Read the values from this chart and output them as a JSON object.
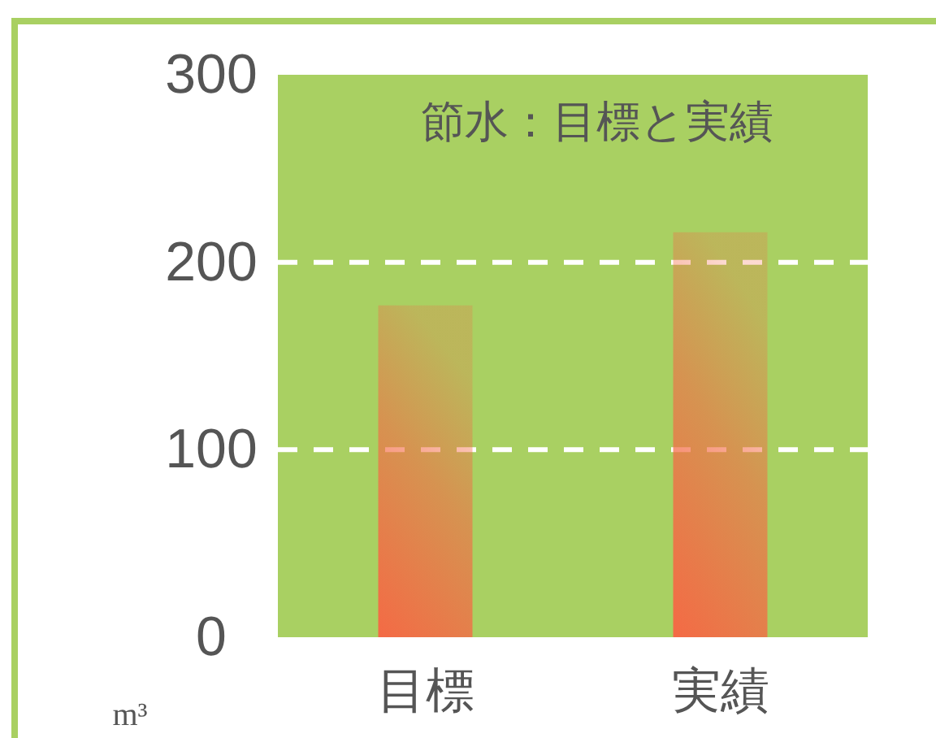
{
  "chart_data": {
    "type": "bar",
    "title": "節水：目標と実績",
    "ylabel": "m³",
    "categories": [
      "目標",
      "実績"
    ],
    "values": [
      177,
      216
    ],
    "color": "#f46a45",
    "ylim": [
      0,
      300
    ],
    "yticks": [
      0,
      100,
      200,
      300
    ],
    "grid": "y"
  }
}
